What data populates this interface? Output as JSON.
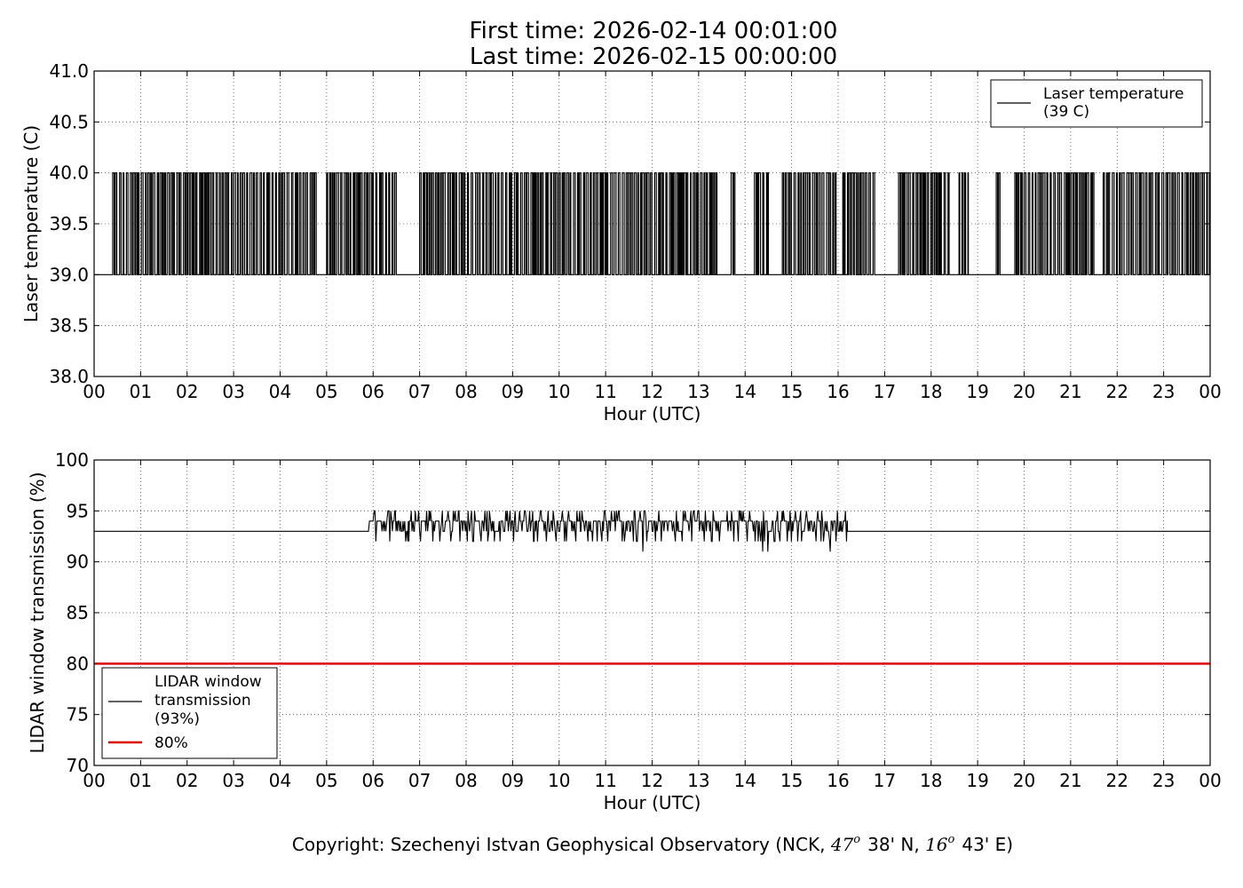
{
  "title": {
    "line1": "First time: 2026-02-14 00:01:00",
    "line2": "Last time: 2026-02-15 00:00:00"
  },
  "copyright": {
    "prefix": "Copyright: Szechenyi Istvan Geophysical Observatory (NCK, ",
    "lat_deg": "47",
    "lat_sup": "o",
    "lat_min": "38' N, ",
    "lon_deg": "16",
    "lon_sup": "o",
    "lon_min": "43' E)"
  },
  "chart_data": [
    {
      "type": "line",
      "xlabel": "Hour (UTC)",
      "ylabel": "Laser temperature (C)",
      "xlim": [
        0,
        24
      ],
      "ylim": [
        38.0,
        41.0
      ],
      "x_ticks": [
        "00",
        "01",
        "02",
        "03",
        "04",
        "05",
        "06",
        "07",
        "08",
        "09",
        "10",
        "11",
        "12",
        "13",
        "14",
        "15",
        "16",
        "17",
        "18",
        "19",
        "20",
        "21",
        "22",
        "23",
        "00"
      ],
      "y_ticks": [
        "38.0",
        "38.5",
        "39.0",
        "39.5",
        "40.0",
        "40.5",
        "41.0"
      ],
      "grid": true,
      "legend_position": "top-right",
      "series": [
        {
          "name": "Laser temperature\n(39 C)",
          "legend_lines": [
            "Laser temperature",
            "(39 C)"
          ],
          "color": "#000000",
          "baseline": 39.0,
          "high": 40.0,
          "burst_windows": [
            [
              0.4,
              4.8
            ],
            [
              5.0,
              6.5
            ],
            [
              7.0,
              11.0
            ],
            [
              11.0,
              13.4
            ],
            [
              13.7,
              13.8
            ],
            [
              14.2,
              14.5
            ],
            [
              14.8,
              16.0
            ],
            [
              16.1,
              16.8
            ],
            [
              17.3,
              18.4
            ],
            [
              18.6,
              18.8
            ],
            [
              19.4,
              19.5
            ],
            [
              19.8,
              21.5
            ],
            [
              21.7,
              24.0
            ]
          ],
          "note_values": "Discrete readings alternating between 39.0 and 40.0 within the burst windows"
        }
      ]
    },
    {
      "type": "line",
      "xlabel": "Hour (UTC)",
      "ylabel": "LIDAR window transmission (%)",
      "xlim": [
        0,
        24
      ],
      "ylim": [
        70,
        100
      ],
      "x_ticks": [
        "00",
        "01",
        "02",
        "03",
        "04",
        "05",
        "06",
        "07",
        "08",
        "09",
        "10",
        "11",
        "12",
        "13",
        "14",
        "15",
        "16",
        "17",
        "18",
        "19",
        "20",
        "21",
        "22",
        "23",
        "00"
      ],
      "y_ticks": [
        "70",
        "75",
        "80",
        "85",
        "90",
        "95",
        "100"
      ],
      "grid": true,
      "legend_position": "bottom-left",
      "series": [
        {
          "name": "LIDAR window\ntransmission\n(93%)",
          "legend_lines": [
            "LIDAR window",
            "transmission",
            "(93%)"
          ],
          "color": "#000000",
          "baseline": 93,
          "active_window": [
            5.9,
            16.2
          ],
          "active_min": 91,
          "active_max": 95
        },
        {
          "name": "80%",
          "legend_lines": [
            "80%"
          ],
          "color": "#dd0000",
          "value": 80
        }
      ]
    }
  ]
}
